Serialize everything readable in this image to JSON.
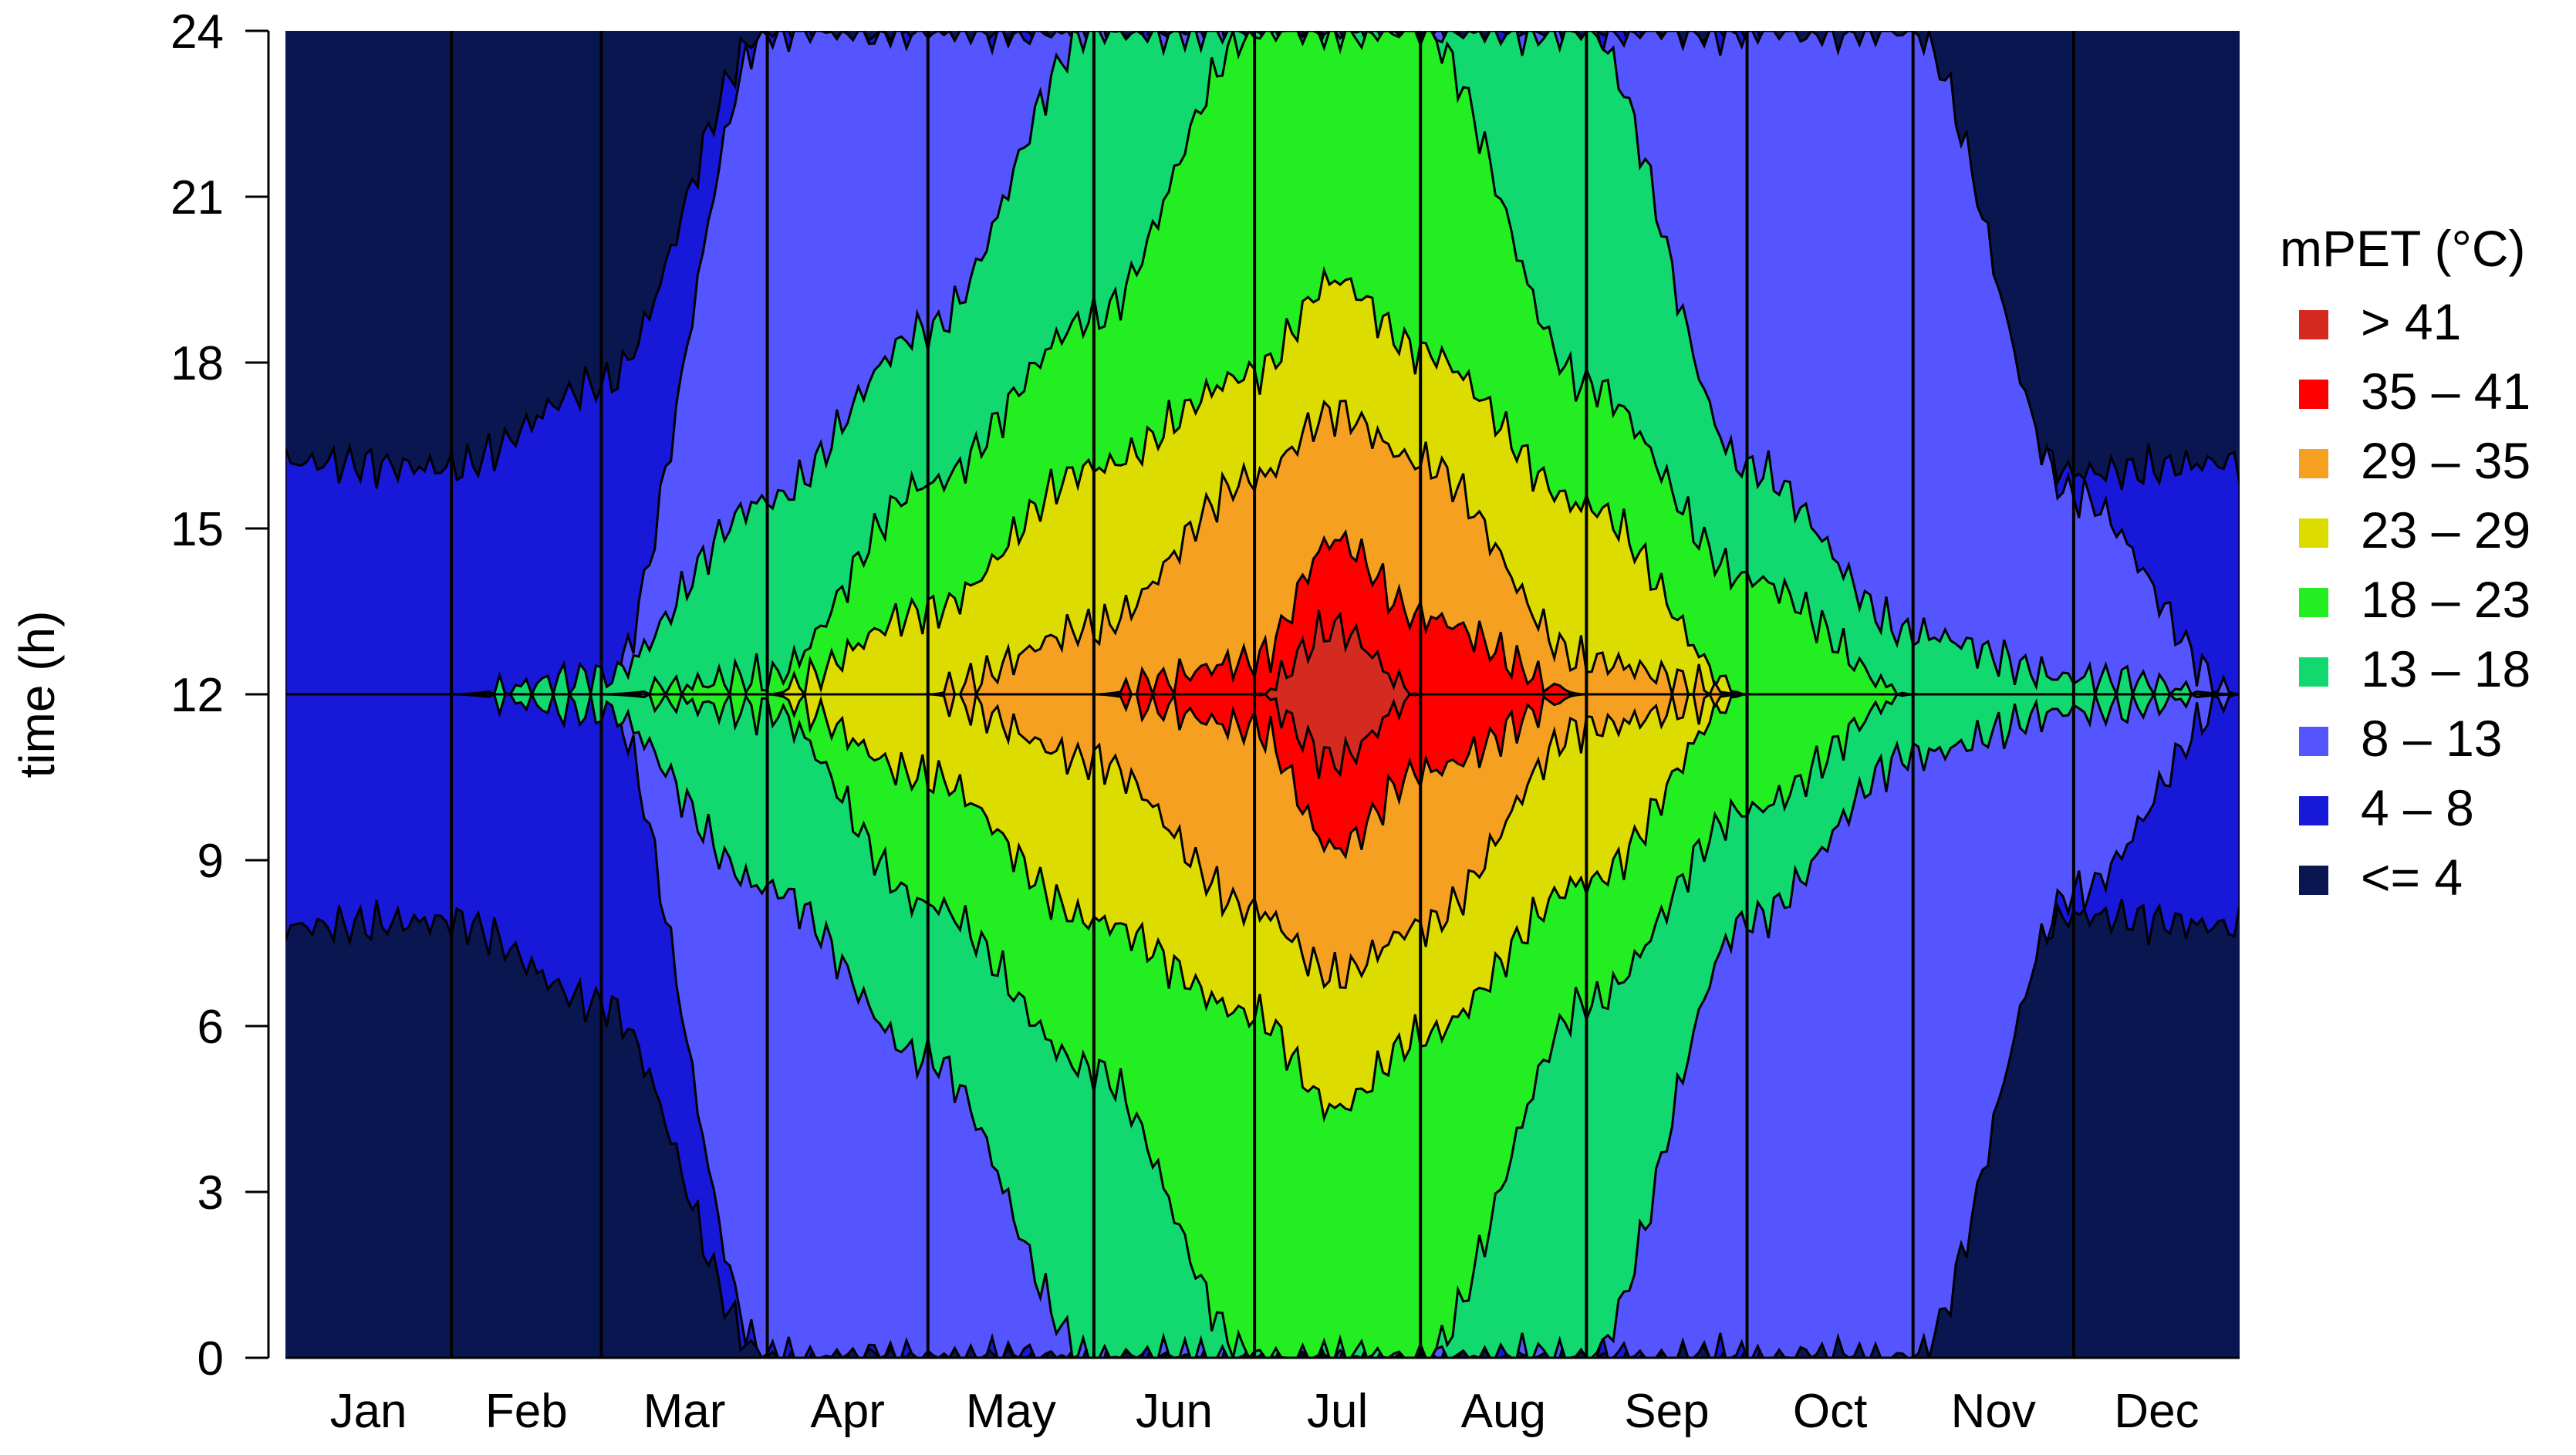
{
  "chart_data": {
    "type": "heatmap",
    "title": "",
    "xlabel": "",
    "ylabel": "time (h)",
    "x": {
      "range": [
        0,
        365
      ],
      "months": [
        "Jan",
        "Feb",
        "Mar",
        "Apr",
        "May",
        "Jun",
        "Jul",
        "Aug",
        "Sep",
        "Oct",
        "Nov",
        "Dec"
      ],
      "month_boundaries_day_of_year": [
        0,
        31,
        59,
        90,
        120,
        151,
        181,
        212,
        243,
        273,
        304,
        334,
        365
      ]
    },
    "y": {
      "range": [
        0,
        24
      ],
      "ticks": [
        "0",
        "3",
        "6",
        "9",
        "12",
        "15",
        "18",
        "21",
        "24"
      ],
      "tick_values": [
        0,
        3,
        6,
        9,
        12,
        15,
        18,
        21,
        24
      ]
    },
    "legend": {
      "title": "mPET (°C)",
      "placement": "right",
      "items": [
        {
          "label": "> 41",
          "color": "#d42a1f"
        },
        {
          "label": "35 – 41",
          "color": "#ff0000"
        },
        {
          "label": "29 – 35",
          "color": "#f5a020"
        },
        {
          "label": "23 – 29",
          "color": "#dcdc00"
        },
        {
          "label": "18 – 23",
          "color": "#22ee22"
        },
        {
          "label": "13 – 18",
          "color": "#12d870"
        },
        {
          "label": "8 – 13",
          "color": "#5555ff"
        },
        {
          "label": "4 – 8",
          "color": "#1818d8"
        },
        {
          "label": "<= 4",
          "color": "#0a1650"
        }
      ]
    },
    "contour_bands_h_about_noon": {
      "description_day_of_year": [
        0,
        31,
        59,
        90,
        120,
        151,
        181,
        196,
        212,
        243,
        273,
        304,
        334,
        365
      ],
      "lower_4_h_upper_4_h_half_width": [
        4.2,
        4.1,
        5.6,
        12,
        12,
        12,
        12,
        12,
        12,
        12,
        12,
        8,
        4,
        4.2
      ],
      "bands": [
        {
          "upper_bound": 41,
          "half_width_h": [
            0,
            0,
            0,
            0,
            0,
            0,
            0,
            1.2,
            0,
            0,
            0,
            0,
            0,
            0
          ]
        },
        {
          "upper_bound": 35,
          "half_width_h": [
            0,
            0,
            0,
            0,
            0,
            0,
            0.6,
            2.8,
            1.4,
            0,
            0,
            0,
            0,
            0
          ]
        },
        {
          "upper_bound": 29,
          "half_width_h": [
            0,
            0,
            0,
            0,
            0,
            1.2,
            3.9,
            5.1,
            4.2,
            0.6,
            0,
            0,
            0,
            0
          ]
        },
        {
          "upper_bound": 23,
          "half_width_h": [
            0,
            0,
            0,
            0,
            1.5,
            4.1,
            5.8,
            7.5,
            6.2,
            3.4,
            0,
            0,
            0,
            0
          ]
        },
        {
          "upper_bound": 18,
          "half_width_h": [
            0,
            0,
            0,
            0.3,
            3.8,
            6.8,
            12,
            12,
            12,
            5.6,
            2.1,
            0,
            0,
            0
          ]
        },
        {
          "upper_bound": 13,
          "half_width_h": [
            0,
            0,
            0.3,
            3.5,
            6.6,
            12,
            12,
            12,
            12,
            12,
            4.1,
            1.1,
            0.3,
            0
          ]
        },
        {
          "upper_bound": 8,
          "half_width_h": [
            0,
            0,
            0,
            12,
            12,
            12,
            12,
            12,
            12,
            12,
            12,
            12,
            3.6,
            0
          ]
        }
      ]
    }
  }
}
